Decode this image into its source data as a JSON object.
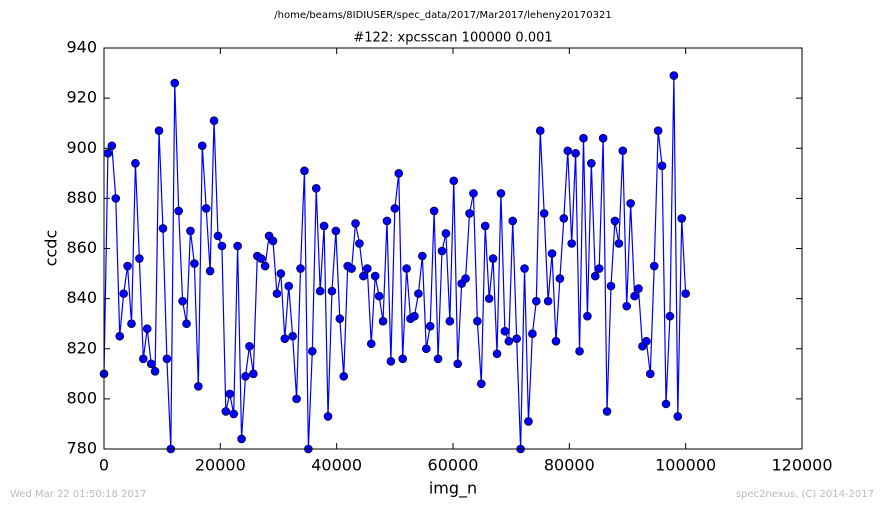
{
  "chart_data": {
    "type": "line",
    "title": "/home/beams/8IDIUSER/spec_data/2017/Mar2017/leheny20170321",
    "subtitle": "#122: xpcsscan 100000 0.001",
    "xlabel": "img_n",
    "ylabel": "ccdc",
    "color": "#0000ff",
    "marker": "circle",
    "x": [
      0,
      676,
      1351,
      2027,
      2703,
      3378,
      4054,
      4730,
      5405,
      6081,
      6757,
      7432,
      8108,
      8784,
      9459,
      10135,
      10811,
      11486,
      12162,
      12838,
      13514,
      14189,
      14865,
      15541,
      16216,
      16892,
      17568,
      18243,
      18919,
      19595,
      20270,
      20946,
      21622,
      22297,
      22973,
      23649,
      24324,
      25000,
      25676,
      26351,
      27027,
      27703,
      28378,
      29054,
      29730,
      30405,
      31081,
      31757,
      32432,
      33108,
      33784,
      34459,
      35135,
      35811,
      36486,
      37162,
      37838,
      38514,
      39189,
      39865,
      40541,
      41216,
      41892,
      42568,
      43243,
      43919,
      44595,
      45270,
      45946,
      46622,
      47297,
      47973,
      48649,
      49324,
      50000,
      50676,
      51351,
      52027,
      52703,
      53378,
      54054,
      54730,
      55405,
      56081,
      56757,
      57432,
      58108,
      58784,
      59459,
      60135,
      60811,
      61486,
      62162,
      62838,
      63514,
      64189,
      64865,
      65541,
      66216,
      66892,
      67568,
      68243,
      68919,
      69595,
      70270,
      70946,
      71622,
      72297,
      72973,
      73649,
      74324,
      75000,
      75676,
      76351,
      77027,
      77703,
      78378,
      79054,
      79730,
      80405,
      81081,
      81757,
      82432,
      83108,
      83784,
      84459,
      85135,
      85811,
      86486,
      87162,
      87838,
      88514,
      89189,
      89865,
      90541,
      91216,
      91892,
      92568,
      93243,
      93919,
      94595,
      95270,
      95946,
      96622,
      97297,
      97973,
      98649,
      99324,
      100000
    ],
    "values": [
      810,
      898,
      901,
      880,
      825,
      842,
      853,
      830,
      894,
      856,
      816,
      828,
      814,
      811,
      907,
      868,
      816,
      780,
      926,
      875,
      839,
      830,
      867,
      854,
      805,
      901,
      876,
      851,
      911,
      865,
      861,
      795,
      802,
      794,
      861,
      784,
      809,
      821,
      810,
      857,
      856,
      853,
      865,
      863,
      842,
      850,
      824,
      845,
      825,
      800,
      852,
      891,
      780,
      819,
      884,
      843,
      869,
      793,
      843,
      867,
      832,
      809,
      853,
      852,
      870,
      862,
      849,
      852,
      822,
      849,
      841,
      831,
      871,
      815,
      876,
      890,
      816,
      852,
      832,
      833,
      842,
      857,
      820,
      829,
      875,
      816,
      859,
      866,
      831,
      887,
      814,
      846,
      848,
      874,
      882,
      831,
      806,
      869,
      840,
      856,
      818,
      882,
      827,
      823,
      871,
      824,
      780,
      852,
      791,
      826,
      839,
      907,
      874,
      839,
      858,
      823,
      848,
      872,
      899,
      862,
      898,
      819,
      904,
      833,
      894,
      849,
      852,
      904,
      795,
      845,
      871,
      862,
      899,
      837,
      878,
      841,
      844,
      821,
      823,
      810,
      853,
      907,
      893,
      798,
      833,
      929,
      793,
      872,
      842
    ],
    "xlim": [
      0,
      120000
    ],
    "xticks": [
      0,
      20000,
      40000,
      60000,
      80000,
      100000,
      120000
    ],
    "ylim": [
      780,
      940
    ],
    "yticks": [
      780,
      800,
      820,
      840,
      860,
      880,
      900,
      920,
      940
    ]
  },
  "footer": {
    "timestamp": "Wed Mar 22 01:50:18 2017",
    "credit": "spec2nexus, (C) 2014-2017"
  }
}
